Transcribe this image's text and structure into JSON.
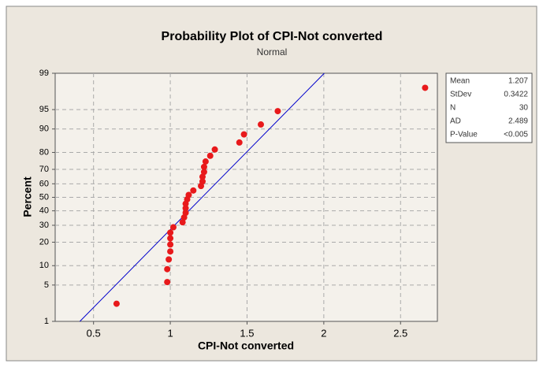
{
  "chart_data": {
    "type": "probability-plot",
    "title": "Probability Plot of CPI-Not converted",
    "subtitle": "Normal",
    "x_label": "CPI-Not converted",
    "y_label": "Percent",
    "yscale": "normal-probability",
    "x": [
      0.65,
      0.98,
      0.98,
      0.99,
      1.0,
      1.0,
      1.0,
      1.0,
      1.02,
      1.08,
      1.09,
      1.1,
      1.1,
      1.1,
      1.11,
      1.12,
      1.15,
      1.2,
      1.21,
      1.21,
      1.22,
      1.22,
      1.23,
      1.26,
      1.29,
      1.45,
      1.48,
      1.59,
      1.7,
      2.66
    ],
    "values": [
      2.3,
      5.6,
      8.9,
      12.2,
      15.5,
      18.8,
      22.1,
      25.4,
      28.7,
      32.0,
      35.3,
      38.6,
      41.9,
      45.2,
      48.5,
      51.8,
      55.1,
      58.4,
      61.7,
      65.0,
      68.3,
      71.6,
      74.9,
      78.2,
      81.5,
      84.8,
      88.1,
      91.4,
      94.7,
      98.0
    ],
    "color": "#e8191b",
    "fit_color": "#0000cc",
    "xlim": [
      0.25,
      2.74
    ],
    "xticks": [
      0.5,
      1.0,
      1.5,
      2.0,
      2.5
    ],
    "ylim": [
      1,
      99
    ],
    "yticks": [
      1,
      5,
      10,
      20,
      30,
      40,
      50,
      60,
      70,
      80,
      90,
      95,
      99
    ],
    "grid": true,
    "stats": [
      {
        "label": "Mean",
        "value": 1.207
      },
      {
        "label": "StDev",
        "value": 0.3422
      },
      {
        "label": "N",
        "value": 30
      },
      {
        "label": "AD",
        "value": 2.489
      },
      {
        "label": "P-Value",
        "value": "<0.005"
      }
    ]
  }
}
